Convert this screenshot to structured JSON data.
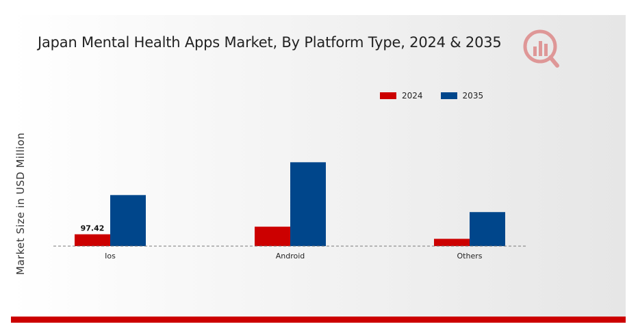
{
  "colors": {
    "series_2024": "#cc0000",
    "series_2035": "#00468b",
    "bottom_bar": "#cc0000"
  },
  "logo": {
    "icon": "watermark-logo-icon"
  },
  "chart_data": {
    "type": "bar",
    "title": "Japan Mental Health Apps Market, By Platform Type, 2024 & 2035",
    "ylabel": "Market Size in USD Million",
    "xlabel": "",
    "categories": [
      "Ios",
      "Android",
      "Others"
    ],
    "series": [
      {
        "name": "2024",
        "values": [
          97.42,
          160,
          60
        ],
        "color": "#cc0000"
      },
      {
        "name": "2035",
        "values": [
          420,
          690,
          280
        ],
        "color": "#00468b"
      }
    ],
    "data_labels": [
      {
        "series": 0,
        "category": 0,
        "text": "97.42"
      }
    ],
    "ylim": [
      0,
      900
    ],
    "grid": false,
    "legend": "top-right"
  }
}
